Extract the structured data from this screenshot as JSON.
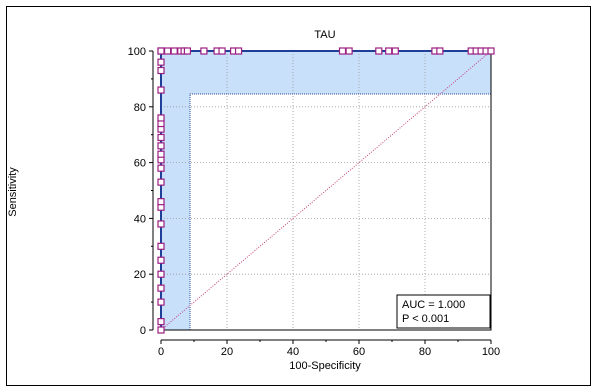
{
  "chart_data": {
    "type": "line",
    "title": "TAU",
    "xlabel": "100-Specificity",
    "ylabel": "Sensitivity",
    "xlim": [
      0,
      100
    ],
    "ylim": [
      0,
      100
    ],
    "xticks": [
      "0",
      "20",
      "40",
      "60",
      "80",
      "100"
    ],
    "yticks": [
      "0",
      "20",
      "40",
      "60",
      "80",
      "100"
    ],
    "grid": true,
    "roc_curve": {
      "x": [
        0,
        0,
        100
      ],
      "y": [
        0,
        100,
        100
      ]
    },
    "reference_line": {
      "x": [
        0,
        100
      ],
      "y": [
        0,
        100
      ]
    },
    "confidence_band": {
      "lower_x": [
        8.8,
        8.8,
        100
      ],
      "lower_y": [
        0,
        84.6,
        84.6
      ]
    },
    "markers_left_y": [
      0,
      3,
      10,
      15,
      20,
      25,
      30,
      38,
      44,
      46,
      53,
      58,
      61,
      63,
      66,
      69,
      72,
      74,
      76,
      86,
      93,
      96,
      100
    ],
    "markers_top_x": [
      0,
      2,
      4,
      6,
      7,
      8,
      13,
      17,
      18.5,
      22,
      23.5,
      55,
      57,
      66,
      69,
      71,
      83,
      84.5,
      94,
      95.5,
      97,
      98.5,
      100
    ],
    "annotation": {
      "auc": "AUC = 1.000",
      "p": "P < 0.001"
    },
    "colors": {
      "roc": "#1f3f99",
      "band": "#c9e0fb",
      "band_edge": "#2a4f9c",
      "reference": "#c24078",
      "marker": "#9b1e83",
      "grid": "#9a9a9a"
    }
  }
}
